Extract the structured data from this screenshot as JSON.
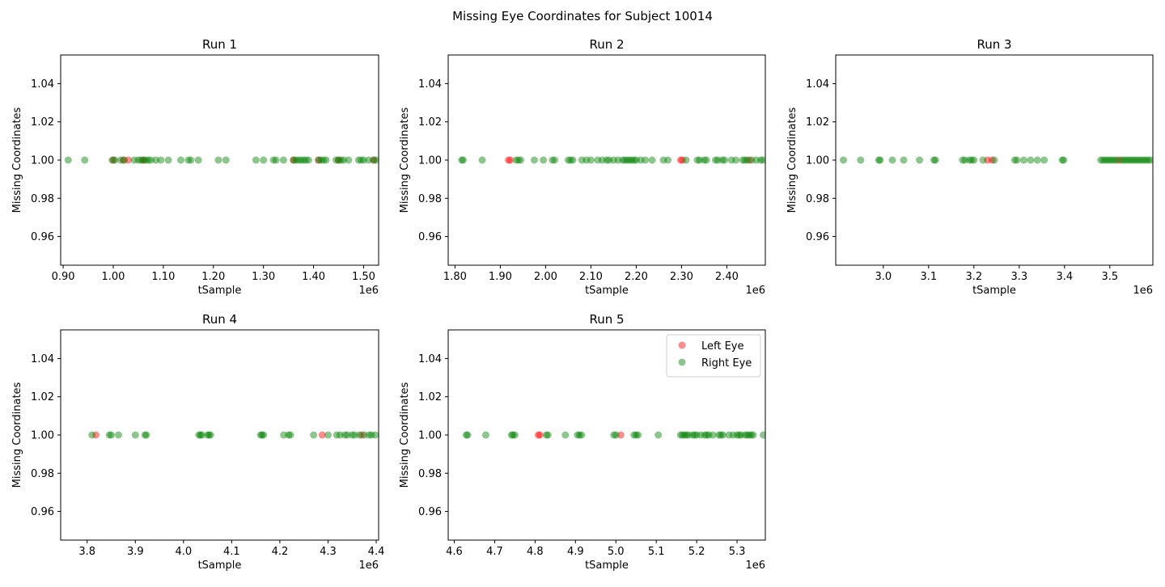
{
  "figure": {
    "title": "Missing Eye Coordinates for Subject 10014"
  },
  "chart_data": [
    {
      "type": "scatter",
      "title": "Run 1",
      "xlabel": "tSample",
      "ylabel": "Missing Coordinates",
      "x_offset_label": "1e6",
      "xlim": [
        0.895,
        1.53
      ],
      "ylim": [
        0.945,
        1.055
      ],
      "xticks": [
        0.9,
        1.0,
        1.1,
        1.2,
        1.3,
        1.4,
        1.5
      ],
      "yticks": [
        0.96,
        0.98,
        1.0,
        1.02,
        1.04
      ],
      "legend": null,
      "series": [
        {
          "name": "Left Eye",
          "color": "#ff0000",
          "x": [
            1.0,
            1.02,
            1.03,
            1.06,
            1.36,
            1.41,
            1.45,
            1.52
          ],
          "y": [
            1,
            1,
            1,
            1,
            1,
            1,
            1,
            1
          ]
        },
        {
          "name": "Right Eye",
          "color": "#008000",
          "x": [
            0.91,
            0.943,
            0.998,
            1.003,
            1.015,
            1.022,
            1.042,
            1.05,
            1.055,
            1.06,
            1.065,
            1.07,
            1.075,
            1.085,
            1.095,
            1.11,
            1.135,
            1.15,
            1.155,
            1.17,
            1.21,
            1.225,
            1.285,
            1.3,
            1.32,
            1.325,
            1.34,
            1.36,
            1.365,
            1.37,
            1.375,
            1.38,
            1.385,
            1.39,
            1.41,
            1.415,
            1.42,
            1.425,
            1.445,
            1.45,
            1.455,
            1.46,
            1.47,
            1.49,
            1.495,
            1.5,
            1.51,
            1.52,
            1.525
          ],
          "y": [
            1,
            1,
            1,
            1,
            1,
            1,
            1,
            1,
            1,
            1,
            1,
            1,
            1,
            1,
            1,
            1,
            1,
            1,
            1,
            1,
            1,
            1,
            1,
            1,
            1,
            1,
            1,
            1,
            1,
            1,
            1,
            1,
            1,
            1,
            1,
            1,
            1,
            1,
            1,
            1,
            1,
            1,
            1,
            1,
            1,
            1,
            1,
            1,
            1
          ]
        }
      ]
    },
    {
      "type": "scatter",
      "title": "Run 2",
      "xlabel": "tSample",
      "ylabel": "Missing Coordinates",
      "x_offset_label": "1e6",
      "xlim": [
        1.785,
        2.485
      ],
      "ylim": [
        0.945,
        1.055
      ],
      "xticks": [
        1.8,
        1.9,
        2.0,
        2.1,
        2.2,
        2.3,
        2.4
      ],
      "yticks": [
        0.96,
        0.98,
        1.0,
        1.02,
        1.04
      ],
      "legend": null,
      "series": [
        {
          "name": "Left Eye",
          "color": "#ff0000",
          "x": [
            1.918,
            1.922,
            2.298,
            2.302,
            2.45
          ],
          "y": [
            1,
            1,
            1,
            1,
            1
          ]
        },
        {
          "name": "Right Eye",
          "color": "#008000",
          "x": [
            1.815,
            1.818,
            1.86,
            1.935,
            1.94,
            1.945,
            1.975,
            1.995,
            2.015,
            2.02,
            2.05,
            2.055,
            2.06,
            2.08,
            2.09,
            2.1,
            2.115,
            2.125,
            2.135,
            2.14,
            2.15,
            2.16,
            2.17,
            2.175,
            2.18,
            2.185,
            2.19,
            2.195,
            2.2,
            2.21,
            2.22,
            2.235,
            2.26,
            2.27,
            2.31,
            2.335,
            2.34,
            2.35,
            2.355,
            2.375,
            2.38,
            2.39,
            2.395,
            2.41,
            2.42,
            2.435,
            2.44,
            2.445,
            2.455,
            2.465,
            2.475,
            2.48
          ],
          "y": [
            1,
            1,
            1,
            1,
            1,
            1,
            1,
            1,
            1,
            1,
            1,
            1,
            1,
            1,
            1,
            1,
            1,
            1,
            1,
            1,
            1,
            1,
            1,
            1,
            1,
            1,
            1,
            1,
            1,
            1,
            1,
            1,
            1,
            1,
            1,
            1,
            1,
            1,
            1,
            1,
            1,
            1,
            1,
            1,
            1,
            1,
            1,
            1,
            1,
            1,
            1,
            1
          ]
        }
      ]
    },
    {
      "type": "scatter",
      "title": "Run 3",
      "xlabel": "tSample",
      "ylabel": "Missing Coordinates",
      "x_offset_label": "1e6",
      "xlim": [
        2.895,
        3.595
      ],
      "ylim": [
        0.945,
        1.055
      ],
      "xticks": [
        3.0,
        3.1,
        3.2,
        3.3,
        3.4,
        3.5
      ],
      "yticks": [
        0.96,
        0.98,
        1.0,
        1.02,
        1.04
      ],
      "legend": null,
      "series": [
        {
          "name": "Left Eye",
          "color": "#ff0000",
          "x": [
            3.23,
            3.24,
            3.52
          ],
          "y": [
            1,
            1,
            1
          ]
        },
        {
          "name": "Right Eye",
          "color": "#008000",
          "x": [
            2.912,
            2.95,
            2.99,
            2.993,
            3.02,
            3.045,
            3.08,
            3.112,
            3.115,
            3.175,
            3.18,
            3.19,
            3.195,
            3.2,
            3.22,
            3.245,
            3.29,
            3.295,
            3.31,
            3.325,
            3.34,
            3.355,
            3.395,
            3.398,
            3.48,
            3.485,
            3.49,
            3.495,
            3.5,
            3.505,
            3.51,
            3.515,
            3.525,
            3.53,
            3.535,
            3.54,
            3.545,
            3.55,
            3.555,
            3.56,
            3.565,
            3.57,
            3.575,
            3.58,
            3.585,
            3.59
          ],
          "y": [
            1,
            1,
            1,
            1,
            1,
            1,
            1,
            1,
            1,
            1,
            1,
            1,
            1,
            1,
            1,
            1,
            1,
            1,
            1,
            1,
            1,
            1,
            1,
            1,
            1,
            1,
            1,
            1,
            1,
            1,
            1,
            1,
            1,
            1,
            1,
            1,
            1,
            1,
            1,
            1,
            1,
            1,
            1,
            1,
            1,
            1
          ]
        }
      ]
    },
    {
      "type": "scatter",
      "title": "Run 4",
      "xlabel": "tSample",
      "ylabel": "Missing Coordinates",
      "x_offset_label": "1e6",
      "xlim": [
        3.745,
        4.405
      ],
      "ylim": [
        0.945,
        1.055
      ],
      "xticks": [
        3.8,
        3.9,
        4.0,
        4.1,
        4.2,
        4.3,
        4.4
      ],
      "yticks": [
        0.96,
        0.98,
        1.0,
        1.02,
        1.04
      ],
      "legend": null,
      "series": [
        {
          "name": "Left Eye",
          "color": "#ff0000",
          "x": [
            3.818,
            4.288,
            4.37
          ],
          "y": [
            1,
            1,
            1
          ]
        },
        {
          "name": "Right Eye",
          "color": "#008000",
          "x": [
            3.81,
            3.846,
            3.85,
            3.865,
            3.9,
            3.92,
            3.923,
            4.032,
            4.035,
            4.038,
            4.05,
            4.053,
            4.056,
            4.16,
            4.163,
            4.166,
            4.208,
            4.218,
            4.222,
            4.27,
            4.3,
            4.318,
            4.325,
            4.335,
            4.34,
            4.35,
            4.355,
            4.365,
            4.375,
            4.385,
            4.39,
            4.398
          ],
          "y": [
            1,
            1,
            1,
            1,
            1,
            1,
            1,
            1,
            1,
            1,
            1,
            1,
            1,
            1,
            1,
            1,
            1,
            1,
            1,
            1,
            1,
            1,
            1,
            1,
            1,
            1,
            1,
            1,
            1,
            1,
            1,
            1
          ]
        }
      ]
    },
    {
      "type": "scatter",
      "title": "Run 5",
      "xlabel": "tSample",
      "ylabel": "Missing Coordinates",
      "x_offset_label": "1e6",
      "xlim": [
        4.585,
        5.37
      ],
      "ylim": [
        0.945,
        1.055
      ],
      "xticks": [
        4.6,
        4.7,
        4.8,
        4.9,
        5.0,
        5.1,
        5.2,
        5.3
      ],
      "yticks": [
        0.96,
        0.98,
        1.0,
        1.02,
        1.04
      ],
      "legend": "top-right",
      "series": [
        {
          "name": "Left Eye",
          "color": "#ff0000",
          "x": [
            4.808,
            4.812,
            5.012
          ],
          "y": [
            1,
            1,
            1
          ]
        },
        {
          "name": "Right Eye",
          "color": "#008000",
          "x": [
            4.63,
            4.633,
            4.678,
            4.742,
            4.745,
            4.75,
            4.828,
            4.832,
            4.875,
            4.905,
            4.91,
            4.915,
            4.995,
            5.0,
            5.045,
            5.05,
            5.055,
            5.105,
            5.16,
            5.165,
            5.17,
            5.175,
            5.18,
            5.19,
            5.195,
            5.2,
            5.21,
            5.22,
            5.225,
            5.23,
            5.24,
            5.255,
            5.26,
            5.265,
            5.28,
            5.29,
            5.3,
            5.305,
            5.31,
            5.32,
            5.325,
            5.33,
            5.335,
            5.34,
            5.365
          ],
          "y": [
            1,
            1,
            1,
            1,
            1,
            1,
            1,
            1,
            1,
            1,
            1,
            1,
            1,
            1,
            1,
            1,
            1,
            1,
            1,
            1,
            1,
            1,
            1,
            1,
            1,
            1,
            1,
            1,
            1,
            1,
            1,
            1,
            1,
            1,
            1,
            1,
            1,
            1,
            1,
            1,
            1,
            1,
            1,
            1,
            1
          ]
        }
      ]
    }
  ]
}
